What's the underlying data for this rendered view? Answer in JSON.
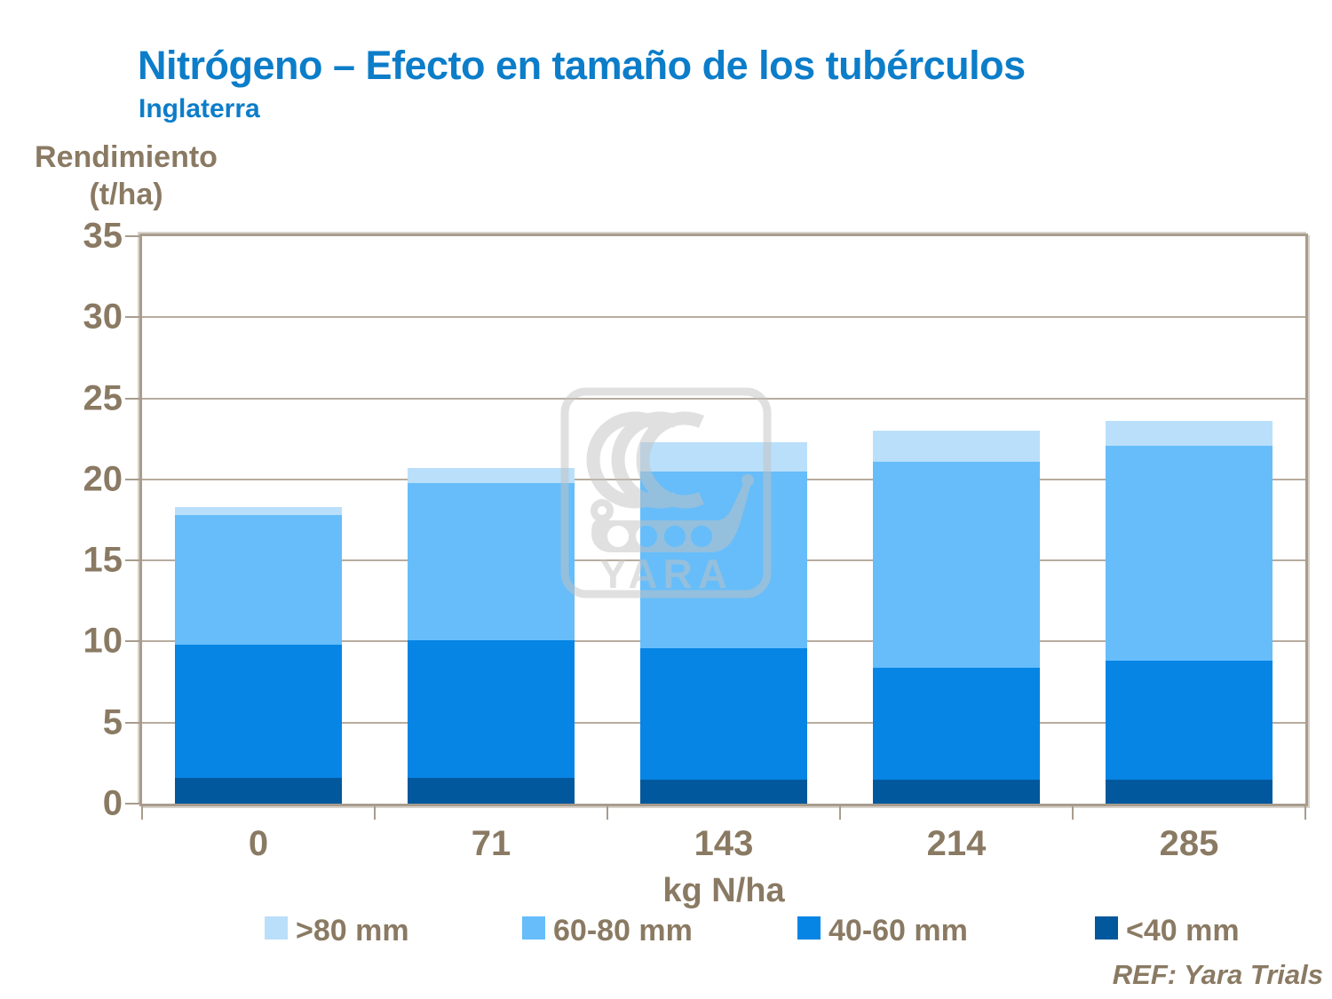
{
  "title": "Nitrógeno – Efecto en tamaño de los tubérculos",
  "subtitle": "Inglaterra",
  "y_axis": {
    "line1": "Rendimiento",
    "line2": "(t/ha)"
  },
  "x_axis": {
    "title": "kg N/ha"
  },
  "ref_note": "REF: Yara Trials",
  "watermark": {
    "text": "YARA",
    "name": "yara-logo"
  },
  "colors": {
    "title_blue": "#0c7dc9",
    "label_taupe": "#8a7a63",
    "frame": "#a89c8d",
    "gridline": "#b7ac9f"
  },
  "chart_data": {
    "type": "bar",
    "stacked": true,
    "title": "Nitrógeno – Efecto en tamaño de los tubérculos",
    "subtitle": "Inglaterra",
    "xlabel": "kg N/ha",
    "ylabel": "Rendimiento (t/ha)",
    "categories": [
      "0",
      "71",
      "143",
      "214",
      "285"
    ],
    "series": [
      {
        "name": "<40 mm",
        "color": "#02589c",
        "values": [
          1.6,
          1.6,
          1.5,
          1.5,
          1.5
        ]
      },
      {
        "name": "40-60 mm",
        "color": "#0685e5",
        "values": [
          8.2,
          8.5,
          8.1,
          6.9,
          7.3
        ]
      },
      {
        "name": "60-80 mm",
        "color": "#66bdfa",
        "values": [
          8.0,
          9.7,
          10.9,
          12.7,
          13.3
        ]
      },
      {
        "name": ">80 mm",
        "color": "#badffa",
        "values": [
          0.5,
          0.9,
          1.8,
          1.9,
          1.5
        ]
      }
    ],
    "totals": [
      18.3,
      20.7,
      22.3,
      23.0,
      23.6
    ],
    "ylim": [
      0,
      35
    ],
    "yticks": [
      0,
      5,
      10,
      15,
      20,
      25,
      30,
      35
    ],
    "grid": "horizontal",
    "legend_position": "bottom",
    "legend_display_order": [
      ">80 mm",
      "60-80 mm",
      "40-60 mm",
      "<40 mm"
    ]
  }
}
